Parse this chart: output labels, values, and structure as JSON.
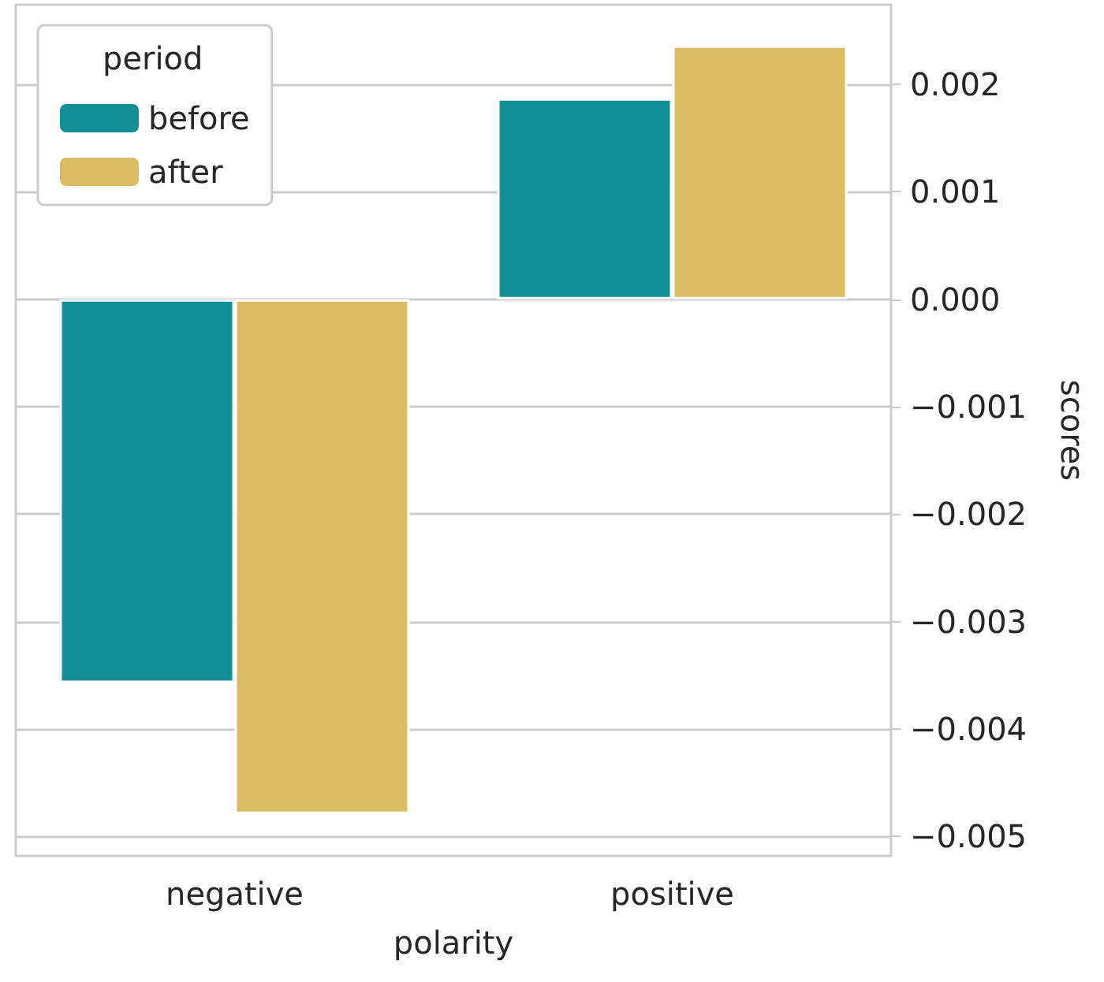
{
  "chart_data": {
    "type": "bar",
    "xlabel": "polarity",
    "ylabel": "scores",
    "legend_title": "period",
    "categories": [
      "negative",
      "positive"
    ],
    "series": [
      {
        "name": "before",
        "color": "#168e96",
        "values": [
          -0.00357,
          0.00187
        ]
      },
      {
        "name": "after",
        "color": "#dbbe62",
        "values": [
          -0.00479,
          0.00236
        ]
      }
    ],
    "ylim": [
      -0.00518,
      0.00274
    ],
    "yticks": [
      {
        "value": -0.005,
        "label": "−0.005"
      },
      {
        "value": -0.004,
        "label": "−0.004"
      },
      {
        "value": -0.003,
        "label": "−0.003"
      },
      {
        "value": -0.002,
        "label": "−0.002"
      },
      {
        "value": -0.001,
        "label": "−0.001"
      },
      {
        "value": 0,
        "label": "0.000"
      },
      {
        "value": 0.001,
        "label": "0.001"
      },
      {
        "value": 0.002,
        "label": "0.002"
      }
    ],
    "grid": "y",
    "legend": "top left"
  }
}
